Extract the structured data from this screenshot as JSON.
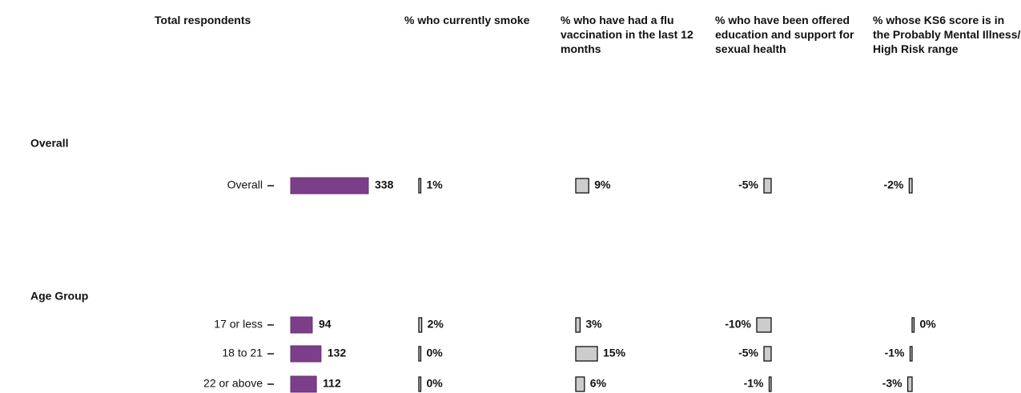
{
  "chart_data": {
    "type": "bar",
    "groups": [
      {
        "name": "Overall",
        "categories": [
          "Overall"
        ]
      },
      {
        "name": "Age Group",
        "categories": [
          "17 or less",
          "18 to 21",
          "22 or above"
        ]
      }
    ],
    "panels": [
      {
        "title": "Total respondents",
        "color": "#7b3f8a",
        "values": [
          338,
          94,
          132,
          112
        ]
      },
      {
        "title": "% who currently smoke",
        "color": "#cccccc",
        "values": [
          1,
          2,
          0,
          0
        ],
        "value_labels": [
          "1%",
          "2%",
          "0%",
          "0%"
        ]
      },
      {
        "title": "% who have had a flu vaccination in the last 12 months",
        "color": "#cccccc",
        "values": [
          9,
          3,
          15,
          6
        ],
        "value_labels": [
          "9%",
          "3%",
          "15%",
          "6%"
        ]
      },
      {
        "title": "% who have been offered education and support for sexual health",
        "color": "#cccccc",
        "values": [
          -5,
          -10,
          -5,
          -1
        ],
        "value_labels": [
          "-5%",
          "-10%",
          "-5%",
          "-1%"
        ]
      },
      {
        "title": "% whose KS6 score is in the Probably Mental Illness/ High Risk range",
        "color": "#cccccc",
        "values": [
          -2,
          0,
          -1,
          -3
        ],
        "value_labels": [
          "-2%",
          "0%",
          "-1%",
          "-3%"
        ]
      }
    ]
  }
}
